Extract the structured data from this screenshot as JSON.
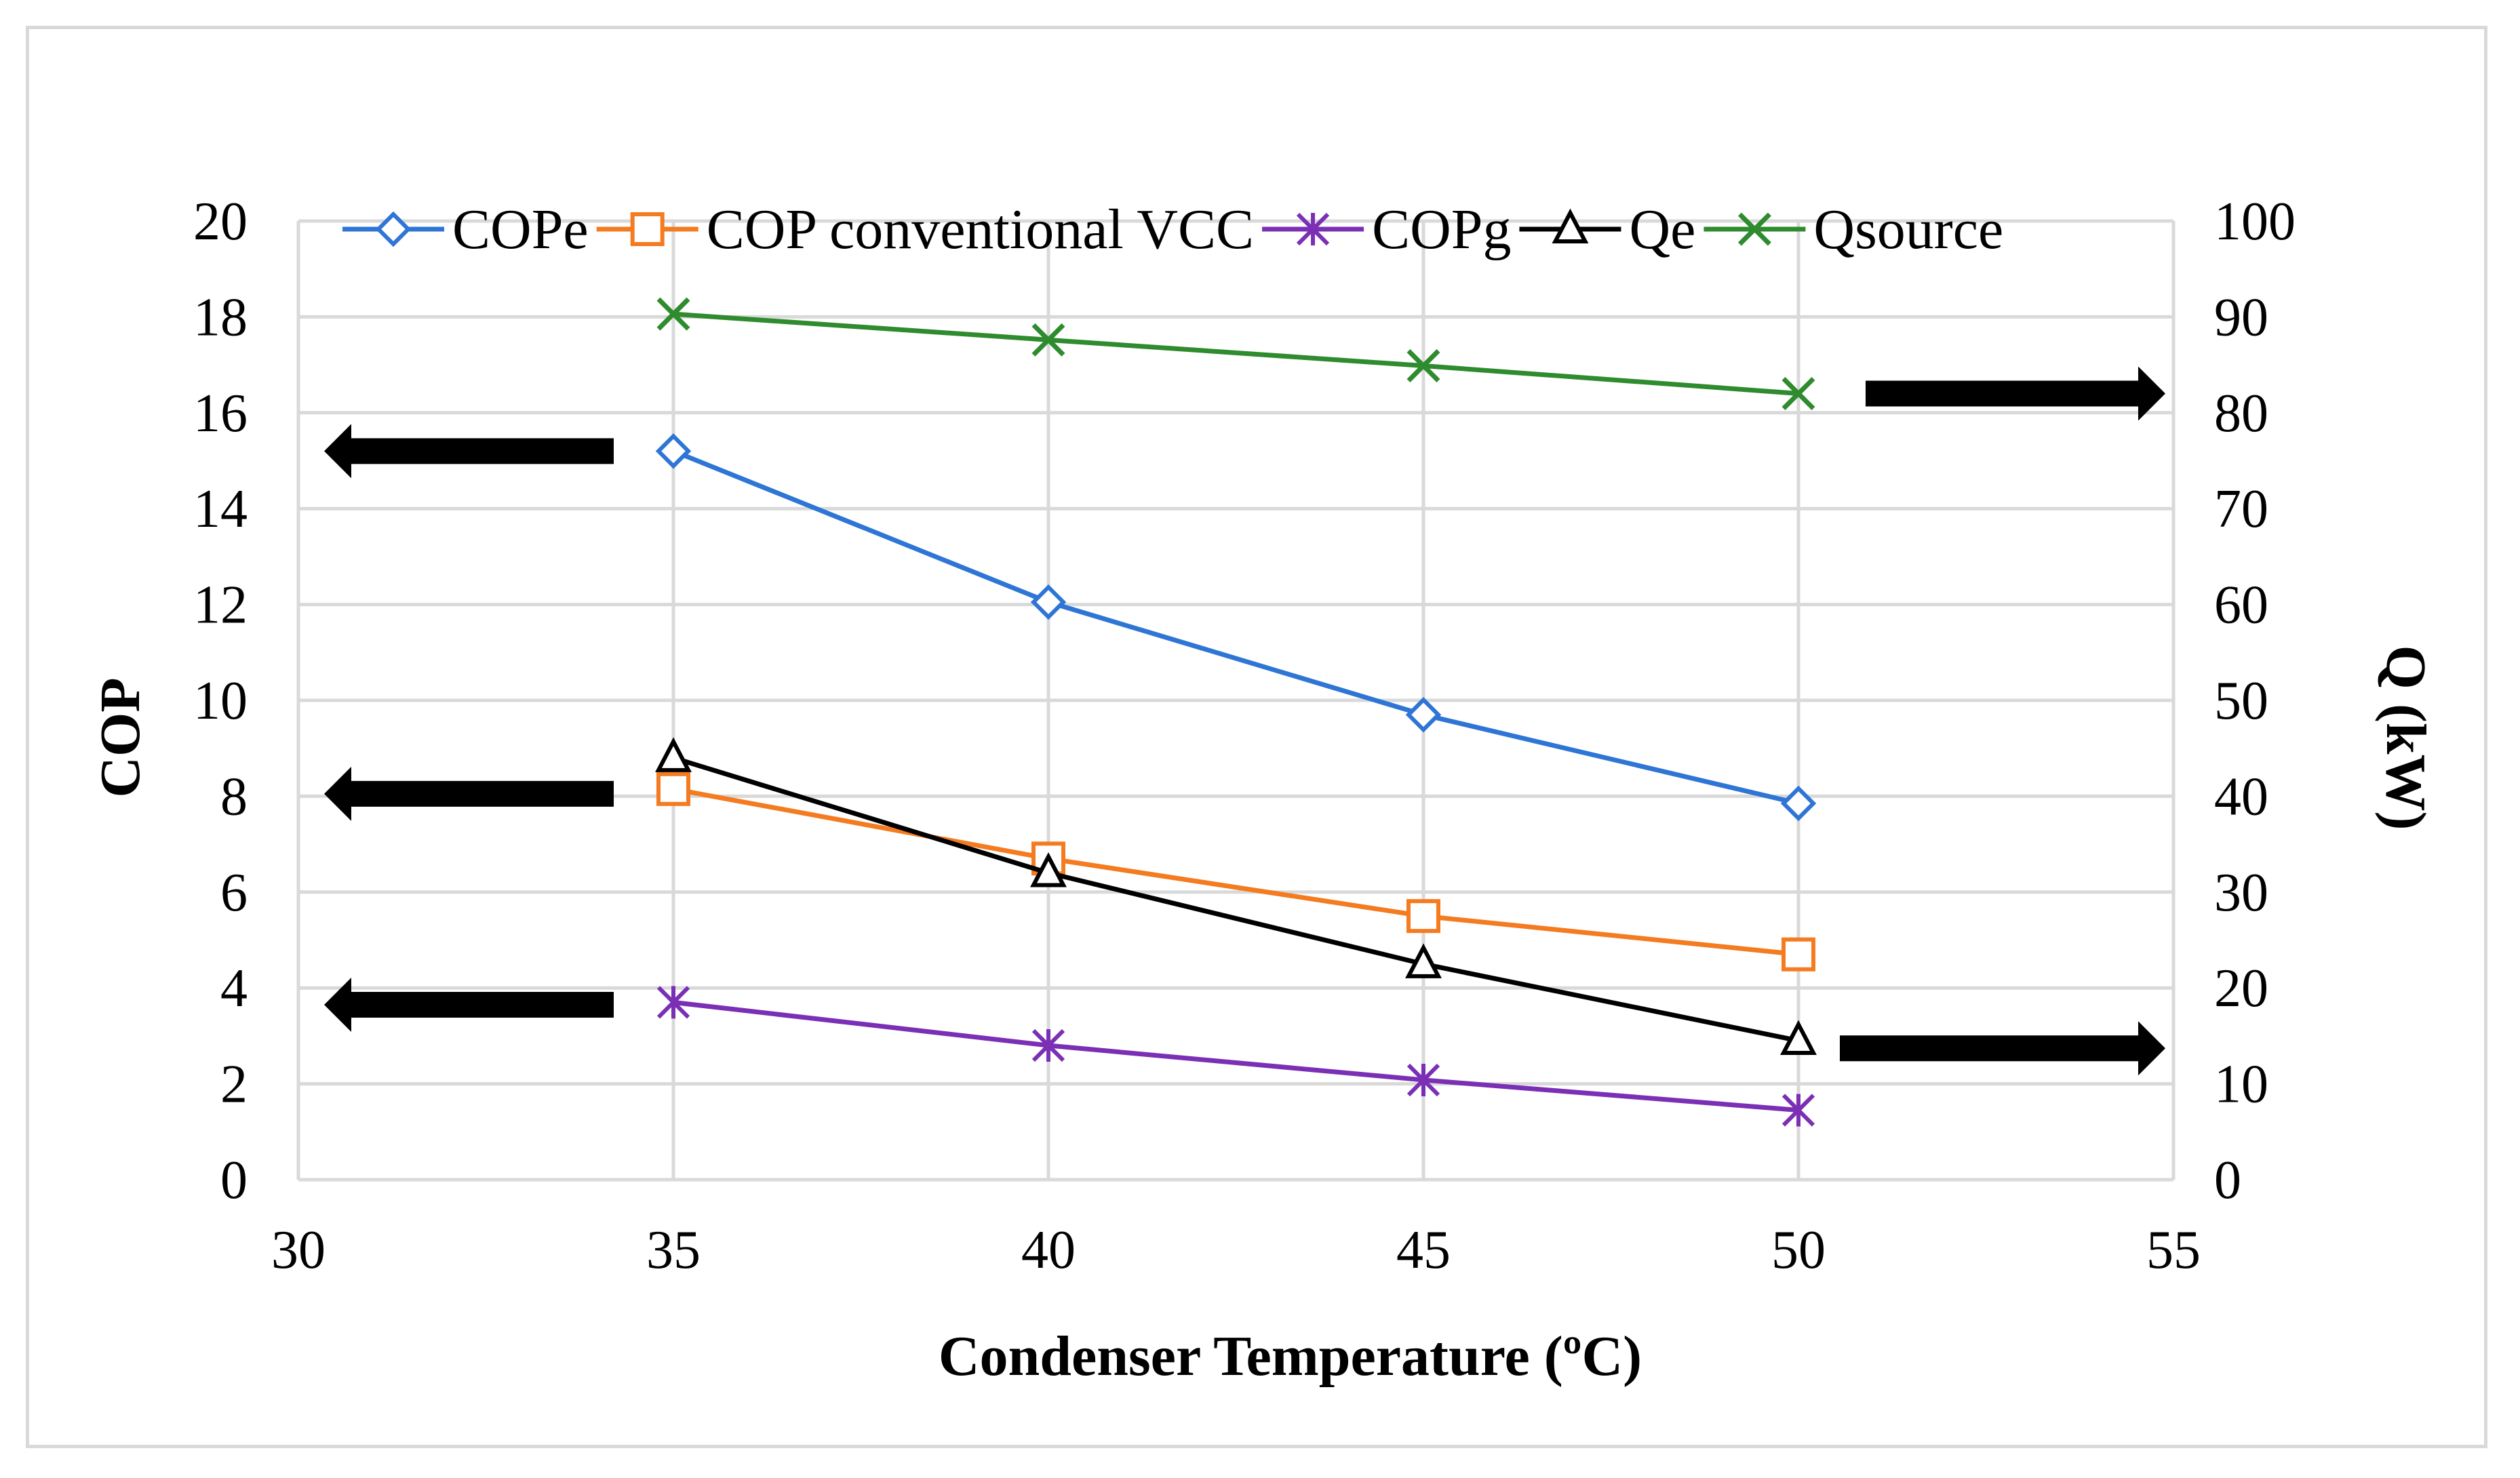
{
  "chart_data": {
    "type": "line",
    "title": "",
    "xlabel": "Condenser Temperature (ºC)",
    "ylabel": "COP",
    "y2label": "Q (kW)",
    "xlim": [
      30,
      55
    ],
    "ylim": [
      0,
      20
    ],
    "y2lim": [
      0,
      100
    ],
    "x_ticks": [
      "30",
      "35",
      "40",
      "45",
      "50",
      "55"
    ],
    "y_ticks": [
      "0",
      "2",
      "4",
      "6",
      "8",
      "10",
      "12",
      "14",
      "16",
      "18",
      "20"
    ],
    "y2_ticks": [
      "0",
      "10",
      "20",
      "30",
      "40",
      "50",
      "60",
      "70",
      "80",
      "90",
      "100"
    ],
    "grid": true,
    "legend_position": "top",
    "x": [
      35,
      40,
      45,
      50
    ],
    "series": [
      {
        "name": "COPe",
        "axis": "left",
        "color": "#2e75d6",
        "marker": "diamond",
        "values": [
          15.2,
          12.05,
          9.7,
          7.85
        ]
      },
      {
        "name": "COP conventional VCC",
        "axis": "left",
        "color": "#f47b20",
        "marker": "square",
        "values": [
          8.15,
          6.7,
          5.5,
          4.7
        ]
      },
      {
        "name": "COPg",
        "axis": "left",
        "color": "#7a2fb5",
        "marker": "asterisk",
        "values": [
          3.7,
          2.8,
          2.08,
          1.45
        ]
      },
      {
        "name": "Qe",
        "axis": "right",
        "color": "#000000",
        "marker": "triangle",
        "values": [
          44,
          32,
          22.5,
          14.5
        ]
      },
      {
        "name": "Qsource",
        "axis": "right",
        "color": "#2e8b2e",
        "marker": "x",
        "values": [
          90.3,
          87.6,
          84.9,
          82.0
        ]
      }
    ],
    "annotations": [
      {
        "type": "arrow",
        "direction": "left",
        "axis": "left",
        "value": 15.2,
        "meaning": "COPe read on left axis"
      },
      {
        "type": "arrow",
        "direction": "left",
        "axis": "left",
        "value": 8.05,
        "meaning": "COP conventional VCC read on left axis"
      },
      {
        "type": "arrow",
        "direction": "left",
        "axis": "left",
        "value": 3.65,
        "meaning": "COPg read on left axis"
      },
      {
        "type": "arrow",
        "direction": "right",
        "axis": "right",
        "value": 82.0,
        "meaning": "Qsource read on right axis"
      },
      {
        "type": "arrow",
        "direction": "right",
        "axis": "right",
        "value": 13.7,
        "meaning": "Qe read on right axis"
      }
    ]
  }
}
